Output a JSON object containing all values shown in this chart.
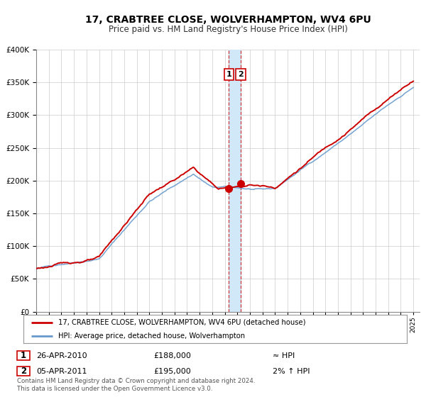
{
  "title": "17, CRABTREE CLOSE, WOLVERHAMPTON, WV4 6PU",
  "subtitle": "Price paid vs. HM Land Registry's House Price Index (HPI)",
  "legend_line1": "17, CRABTREE CLOSE, WOLVERHAMPTON, WV4 6PU (detached house)",
  "legend_line2": "HPI: Average price, detached house, Wolverhampton",
  "footer": "Contains HM Land Registry data © Crown copyright and database right 2024.\nThis data is licensed under the Open Government Licence v3.0.",
  "transaction1_date": "26-APR-2010",
  "transaction1_price": "£188,000",
  "transaction1_hpi": "≈ HPI",
  "transaction2_date": "05-APR-2011",
  "transaction2_price": "£195,000",
  "transaction2_hpi": "2% ↑ HPI",
  "marker1_x": 2010.32,
  "marker1_y": 188000,
  "marker2_x": 2011.27,
  "marker2_y": 195000,
  "shade_x1": 2010.32,
  "shade_x2": 2011.27,
  "hpi_color": "#6699cc",
  "price_color": "#cc0000",
  "shade_color": "#d0e8f8",
  "marker_color": "#cc0000",
  "ylim": [
    0,
    400000
  ],
  "xlim": [
    1995,
    2025.5
  ],
  "background_color": "#ffffff",
  "grid_color": "#cccccc"
}
